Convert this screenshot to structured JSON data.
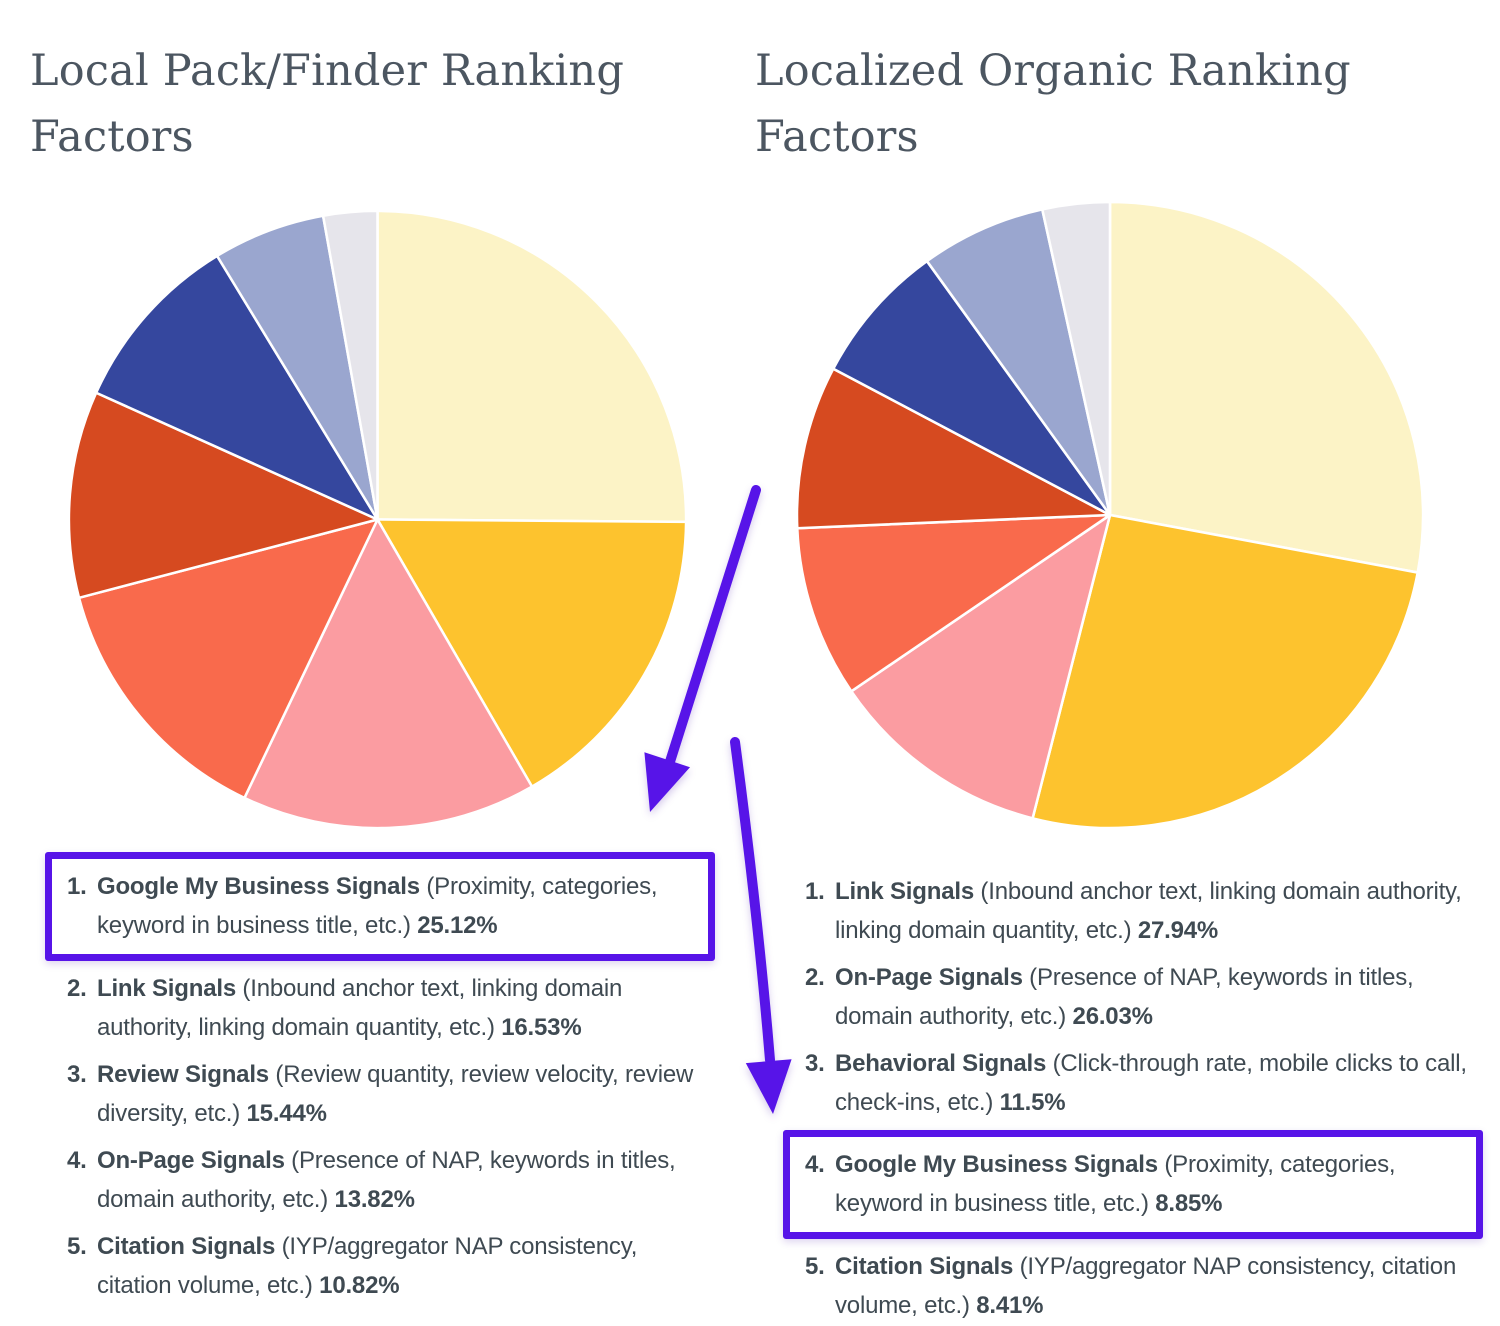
{
  "colors": {
    "accent": "#5714E8",
    "title_text": "#4C5661",
    "body_text": "#3F4A52",
    "background": "#FFFFFF"
  },
  "left_panel": {
    "title": "Local Pack/Finder Ranking Factors",
    "list": [
      {
        "num": "1.",
        "name": "Google My Business Signals",
        "desc": "(Proximity, categories, keyword in business title, etc.)",
        "pct": "25.12%",
        "highlighted": true
      },
      {
        "num": "2.",
        "name": "Link Signals",
        "desc": "(Inbound anchor text, linking domain authority, linking domain quantity, etc.)",
        "pct": "16.53%",
        "highlighted": false
      },
      {
        "num": "3.",
        "name": "Review Signals",
        "desc": "(Review quantity, review velocity, review diversity, etc.)",
        "pct": "15.44%",
        "highlighted": false
      },
      {
        "num": "4.",
        "name": "On-Page Signals",
        "desc": "(Presence of NAP, keywords in titles, domain authority, etc.)",
        "pct": "13.82%",
        "highlighted": false
      },
      {
        "num": "5.",
        "name": "Citation Signals",
        "desc": "(IYP/aggregator NAP consistency, citation volume, etc.)",
        "pct": "10.82%",
        "highlighted": false
      }
    ]
  },
  "right_panel": {
    "title": "Localized Organic Ranking Factors",
    "list": [
      {
        "num": "1.",
        "name": "Link Signals",
        "desc": "(Inbound anchor text, linking domain authority, linking domain quantity, etc.)",
        "pct": "27.94%",
        "highlighted": false
      },
      {
        "num": "2.",
        "name": "On-Page Signals",
        "desc": "(Presence of NAP, keywords in titles, domain authority, etc.)",
        "pct": "26.03%",
        "highlighted": false
      },
      {
        "num": "3.",
        "name": "Behavioral Signals",
        "desc": "(Click-through rate, mobile clicks to call, check-ins, etc.)",
        "pct": "11.5%",
        "highlighted": false
      },
      {
        "num": "4.",
        "name": "Google My Business Signals",
        "desc": "(Proximity, categories, keyword in business title, etc.)",
        "pct": "8.85%",
        "highlighted": true
      },
      {
        "num": "5.",
        "name": "Citation Signals",
        "desc": "(IYP/aggregator NAP consistency, citation volume, etc.)",
        "pct": "8.41%",
        "highlighted": false
      }
    ]
  },
  "chart_data": [
    {
      "type": "pie",
      "title": "Local Pack/Finder Ranking Factors",
      "start_angle_deg": 0,
      "direction": "clockwise",
      "legend": "none",
      "slices": [
        {
          "label": "Google My Business Signals",
          "value": 25.12,
          "color": "#FCF3C6"
        },
        {
          "label": "Link Signals",
          "value": 16.53,
          "color": "#FDC32E"
        },
        {
          "label": "Review Signals",
          "value": 15.44,
          "color": "#FB9CA1"
        },
        {
          "label": "On-Page Signals",
          "value": 13.82,
          "color": "#F96A4C"
        },
        {
          "label": "Citation Signals",
          "value": 10.82,
          "color": "#D64A20"
        },
        {
          "label": "",
          "value": 9.56,
          "color": "#35479E",
          "estimated": true
        },
        {
          "label": "",
          "value": 5.88,
          "color": "#9AA6CF",
          "estimated": true
        },
        {
          "label": "",
          "value": 2.82,
          "color": "#E6E5EB",
          "estimated": true
        }
      ]
    },
    {
      "type": "pie",
      "title": "Localized Organic Ranking Factors",
      "start_angle_deg": 0,
      "direction": "clockwise",
      "legend": "none",
      "slices": [
        {
          "label": "Link Signals",
          "value": 27.94,
          "color": "#FCF3C6"
        },
        {
          "label": "On-Page Signals",
          "value": 26.03,
          "color": "#FDC32E"
        },
        {
          "label": "Behavioral Signals",
          "value": 11.5,
          "color": "#FB9CA1"
        },
        {
          "label": "Google My Business Signals",
          "value": 8.85,
          "color": "#F96A4C"
        },
        {
          "label": "Citation Signals",
          "value": 8.41,
          "color": "#D64A20"
        },
        {
          "label": "",
          "value": 7.32,
          "color": "#35479E",
          "estimated": true
        },
        {
          "label": "",
          "value": 6.47,
          "color": "#9AA6CF",
          "estimated": true
        },
        {
          "label": "",
          "value": 3.47,
          "color": "#E6E5EB",
          "estimated": true
        }
      ]
    }
  ],
  "annotations": {
    "accent_color": "#5714E8",
    "boxes": [
      {
        "around": "left-list-item-1"
      },
      {
        "around": "right-list-item-4"
      }
    ],
    "arrows": [
      {
        "from": "left-pie-area",
        "to": "left-list-item-1"
      },
      {
        "from": "between-pies",
        "to": "right-list-item-4"
      }
    ]
  }
}
